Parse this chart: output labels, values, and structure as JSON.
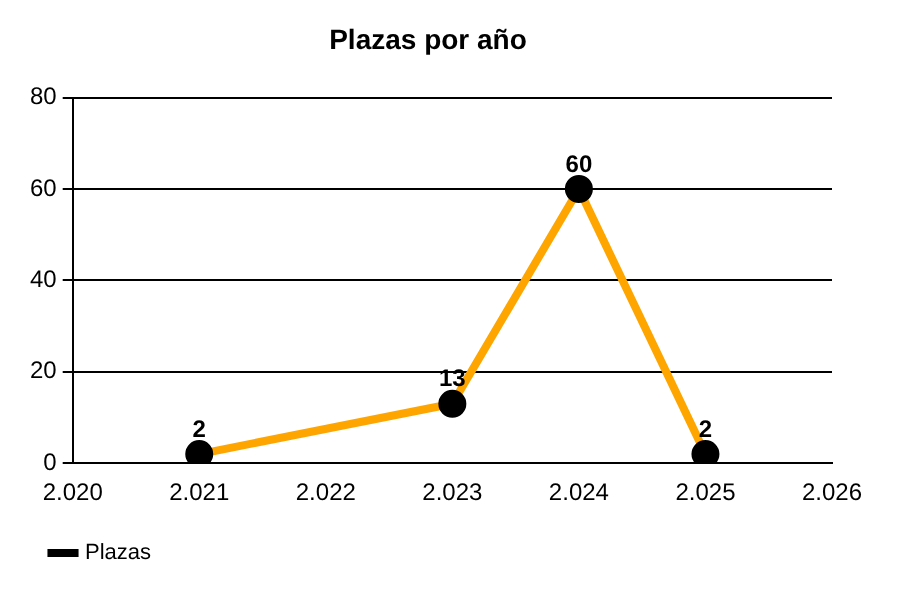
{
  "chart_data": {
    "type": "line",
    "title": "Plazas por año",
    "x": [
      2021,
      2023,
      2024,
      2025
    ],
    "series": [
      {
        "name": "Plazas",
        "color": "#ffa500",
        "values": [
          2,
          13,
          60,
          2
        ]
      }
    ],
    "xlim": [
      2020,
      2026
    ],
    "xticks": [
      {
        "value": 2020,
        "label": "2.020"
      },
      {
        "value": 2021,
        "label": "2.021"
      },
      {
        "value": 2022,
        "label": "2.022"
      },
      {
        "value": 2023,
        "label": "2.023"
      },
      {
        "value": 2024,
        "label": "2.024"
      },
      {
        "value": 2025,
        "label": "2.025"
      },
      {
        "value": 2026,
        "label": "2.026"
      }
    ],
    "ylim": [
      0,
      80
    ],
    "yticks": [
      0,
      20,
      40,
      60,
      80
    ],
    "grid": "y",
    "legend": "bottom left",
    "marker": "circle",
    "line_style": "solid",
    "data_labels": true
  }
}
